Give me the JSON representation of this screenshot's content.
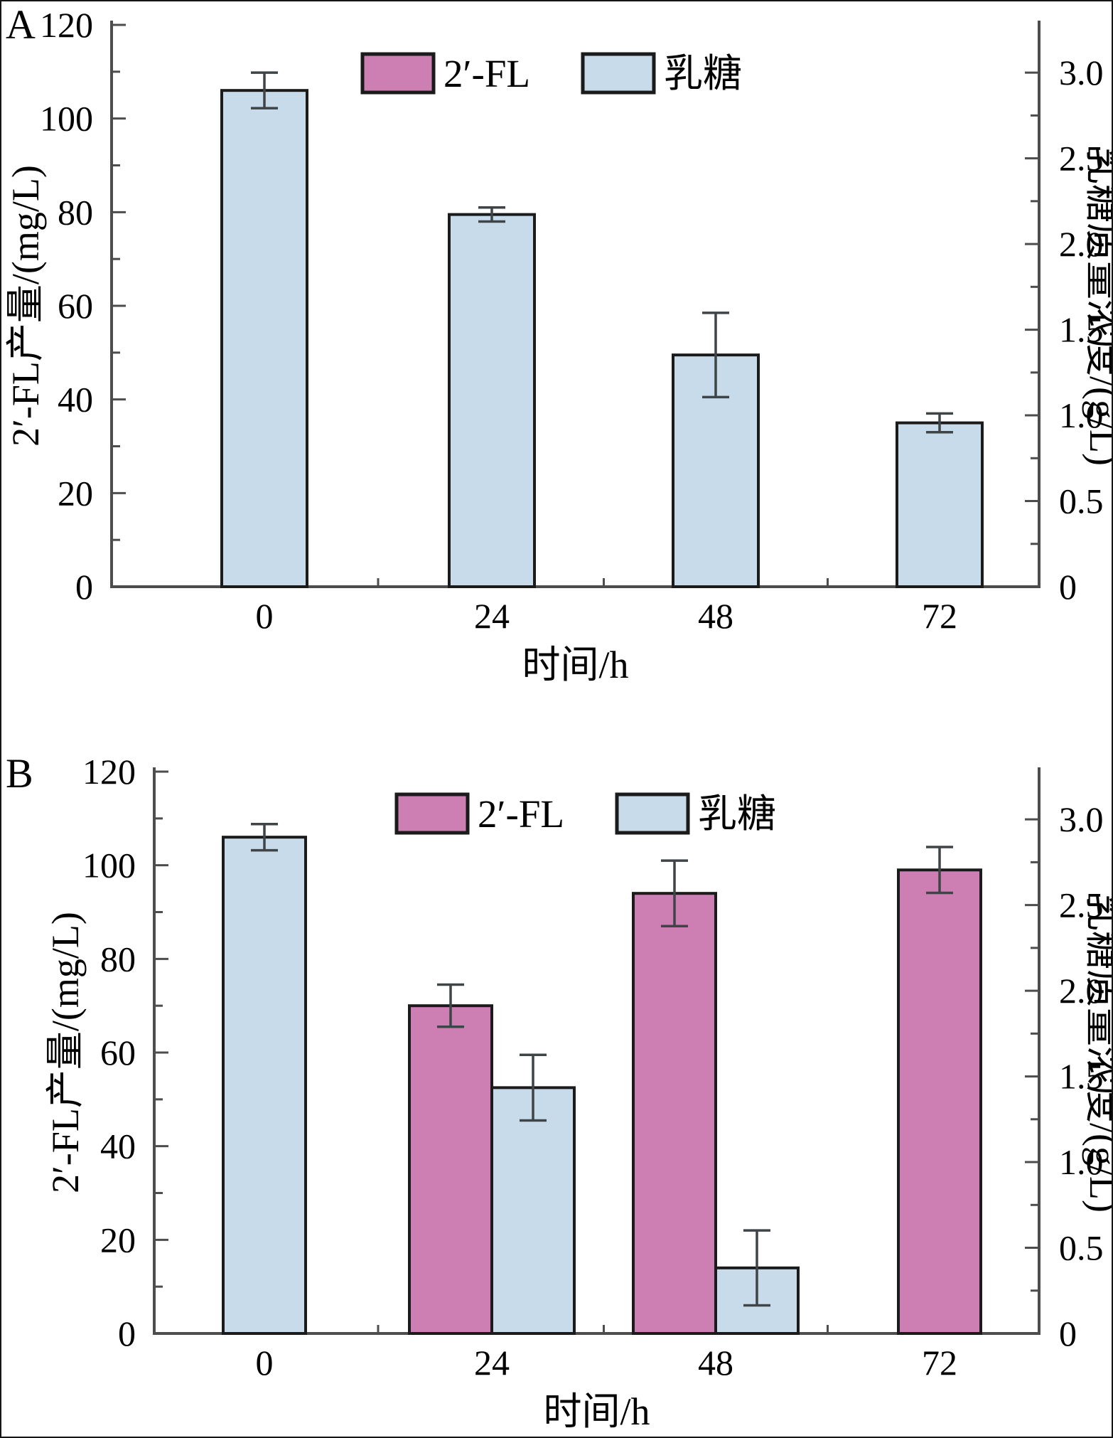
{
  "figure": {
    "description": "Two stacked bar charts (panels A and B) showing 2'-FL production and lactose consumption over time",
    "panels": [
      "A",
      "B"
    ]
  },
  "chart_data": [
    {
      "panel": "A",
      "type": "bar",
      "xlabel": "时间/h",
      "ylabel_left": "2′-FL产量/(mg/L)",
      "ylabel_right": "乳糖质量浓度/(g/L)",
      "x_categories": [
        "0",
        "24",
        "48",
        "72"
      ],
      "left_axis": {
        "min": 0,
        "max": 120,
        "major_step": 20,
        "minor_step": 10,
        "tick_labels": [
          "0",
          "20",
          "40",
          "60",
          "80",
          "100",
          "120"
        ]
      },
      "right_axis": {
        "min": 0,
        "max": 3.0,
        "major_step": 0.5,
        "minor_step": 0.25,
        "tick_labels": [
          "0",
          "0.5",
          "1.0",
          "1.5",
          "2.0",
          "2.5",
          "3.0"
        ],
        "left_units_per_gL": 36.6
      },
      "legend": [
        {
          "series": "fl",
          "label": "2′-FL"
        },
        {
          "series": "lactose",
          "label": "乳糖"
        }
      ],
      "series_colors": {
        "fl": "#cd7fb4",
        "lactose": "#c8dbea"
      },
      "groups": [
        {
          "x": "0",
          "bars": [
            {
              "series": "lactose",
              "value_mgL_axis": 106,
              "value_gL": 2.9,
              "error": 3.8
            }
          ]
        },
        {
          "x": "24",
          "bars": [
            {
              "series": "lactose",
              "value_mgL_axis": 79.5,
              "value_gL": 2.17,
              "error": 1.5
            }
          ]
        },
        {
          "x": "48",
          "bars": [
            {
              "series": "lactose",
              "value_mgL_axis": 49.5,
              "value_gL": 1.35,
              "error": 9.0
            }
          ]
        },
        {
          "x": "72",
          "bars": [
            {
              "series": "lactose",
              "value_mgL_axis": 35,
              "value_gL": 0.96,
              "error": 2.0
            }
          ]
        }
      ]
    },
    {
      "panel": "B",
      "type": "bar",
      "xlabel": "时间/h",
      "ylabel_left": "2′-FL产量/(mg/L)",
      "ylabel_right": "乳糖质量浓度/(g/L)",
      "x_categories": [
        "0",
        "24",
        "48",
        "72"
      ],
      "left_axis": {
        "min": 0,
        "max": 120,
        "major_step": 20,
        "minor_step": 10,
        "tick_labels": [
          "0",
          "20",
          "40",
          "60",
          "80",
          "100",
          "120"
        ]
      },
      "right_axis": {
        "min": 0,
        "max": 3.0,
        "major_step": 0.5,
        "minor_step": 0.25,
        "tick_labels": [
          "0",
          "0.5",
          "1.0",
          "1.5",
          "2.0",
          "2.5",
          "3.0"
        ],
        "left_units_per_gL": 36.6
      },
      "legend": [
        {
          "series": "fl",
          "label": "2′-FL"
        },
        {
          "series": "lactose",
          "label": "乳糖"
        }
      ],
      "series_colors": {
        "fl": "#cd7fb4",
        "lactose": "#c8dbea"
      },
      "groups": [
        {
          "x": "0",
          "bars": [
            {
              "series": "lactose",
              "value_mgL_axis": 106,
              "value_gL": 2.9,
              "error": 2.8
            }
          ]
        },
        {
          "x": "24",
          "bars": [
            {
              "series": "fl",
              "value_mgL_axis": 70,
              "error": 4.5
            },
            {
              "series": "lactose",
              "value_mgL_axis": 52.5,
              "value_gL": 1.43,
              "error": 7.0
            }
          ]
        },
        {
          "x": "48",
          "bars": [
            {
              "series": "fl",
              "value_mgL_axis": 94,
              "error": 7.0
            },
            {
              "series": "lactose",
              "value_mgL_axis": 14,
              "value_gL": 0.38,
              "error": 8.0
            }
          ]
        },
        {
          "x": "72",
          "bars": [
            {
              "series": "fl",
              "value_mgL_axis": 99,
              "error": 4.9
            }
          ]
        }
      ]
    }
  ]
}
